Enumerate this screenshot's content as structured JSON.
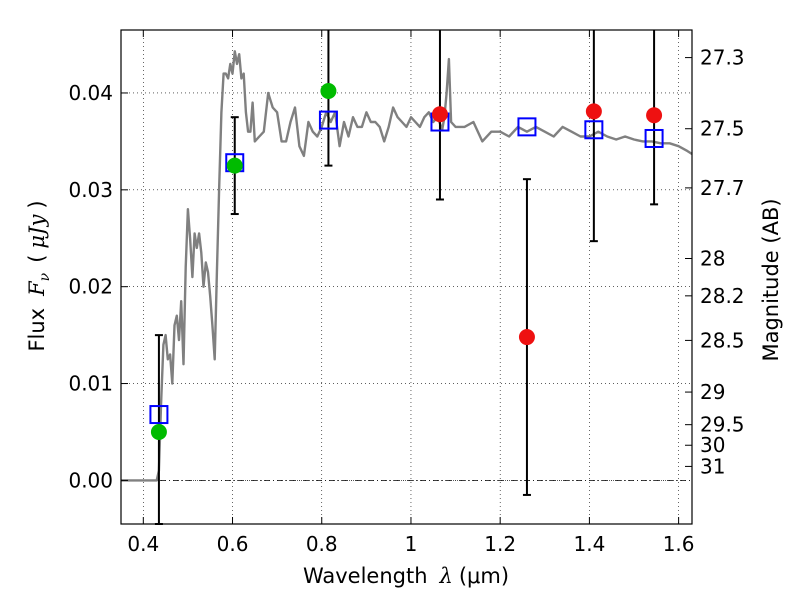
{
  "chart_data": {
    "type": "scatter",
    "title": "",
    "xlabel": {
      "prefix": "Wavelength",
      "symbol": "λ",
      "unit": "(μm)"
    },
    "ylabel": {
      "prefix": "Flux",
      "symbol": "F",
      "subscript": "ν",
      "unit": "μJy"
    },
    "y2label": "Magnitude (AB)",
    "xlim": [
      0.35,
      1.63
    ],
    "ylim": [
      -0.0045,
      0.0465
    ],
    "grid": true,
    "x_ticks": [
      0.4,
      0.6,
      0.8,
      1.0,
      1.2,
      1.4,
      1.6
    ],
    "x_tick_labels": [
      "0.4",
      "0.6",
      "0.8",
      "1",
      "1.2",
      "1.4",
      "1.6"
    ],
    "y_ticks": [
      0.0,
      0.01,
      0.02,
      0.03,
      0.04
    ],
    "y_tick_labels": [
      "0.00",
      "0.01",
      "0.02",
      "0.03",
      "0.04"
    ],
    "mag_ticks": [
      27.3,
      27.5,
      27.7,
      28,
      28.2,
      28.5,
      29,
      29.5,
      30,
      31
    ],
    "mag_tick_labels": [
      "27.3",
      "27.5",
      "27.7",
      "28",
      "28.2",
      "28.5",
      "29",
      "29.5",
      "30",
      "31"
    ],
    "mag_zero_point": 23.9,
    "colors": {
      "spectrum": "#808080",
      "model_square": "#0000ff",
      "detection_green": "#00bb00",
      "measurement_red": "#ee1111",
      "errorbar": "#000000",
      "zero_line": "#000000"
    },
    "spectrum": {
      "x": [
        0.35,
        0.43,
        0.435,
        0.44,
        0.445,
        0.45,
        0.455,
        0.46,
        0.465,
        0.47,
        0.475,
        0.48,
        0.485,
        0.49,
        0.495,
        0.5,
        0.505,
        0.51,
        0.515,
        0.52,
        0.525,
        0.53,
        0.535,
        0.54,
        0.545,
        0.55,
        0.555,
        0.56,
        0.565,
        0.57,
        0.575,
        0.58,
        0.585,
        0.59,
        0.595,
        0.6,
        0.605,
        0.61,
        0.615,
        0.62,
        0.625,
        0.63,
        0.635,
        0.64,
        0.645,
        0.65,
        0.66,
        0.67,
        0.68,
        0.69,
        0.7,
        0.71,
        0.72,
        0.73,
        0.74,
        0.75,
        0.76,
        0.77,
        0.78,
        0.79,
        0.8,
        0.81,
        0.82,
        0.83,
        0.84,
        0.85,
        0.86,
        0.87,
        0.88,
        0.89,
        0.9,
        0.91,
        0.92,
        0.93,
        0.94,
        0.95,
        0.96,
        0.97,
        0.98,
        0.99,
        1.0,
        1.01,
        1.02,
        1.03,
        1.04,
        1.05,
        1.06,
        1.07,
        1.075,
        1.08,
        1.085,
        1.09,
        1.1,
        1.12,
        1.14,
        1.16,
        1.18,
        1.2,
        1.22,
        1.24,
        1.26,
        1.28,
        1.3,
        1.32,
        1.34,
        1.36,
        1.38,
        1.4,
        1.42,
        1.44,
        1.46,
        1.48,
        1.5,
        1.52,
        1.54,
        1.56,
        1.58,
        1.6,
        1.62,
        1.63
      ],
      "y": [
        0.0,
        0.0,
        0.001,
        0.008,
        0.014,
        0.015,
        0.0125,
        0.013,
        0.01,
        0.016,
        0.017,
        0.0145,
        0.0185,
        0.012,
        0.022,
        0.028,
        0.025,
        0.021,
        0.0255,
        0.024,
        0.0255,
        0.0235,
        0.02,
        0.0225,
        0.0215,
        0.019,
        0.016,
        0.0125,
        0.0215,
        0.03,
        0.038,
        0.042,
        0.042,
        0.0415,
        0.043,
        0.042,
        0.0443,
        0.043,
        0.044,
        0.0415,
        0.042,
        0.038,
        0.036,
        0.036,
        0.039,
        0.035,
        0.0355,
        0.036,
        0.04,
        0.0385,
        0.038,
        0.035,
        0.035,
        0.037,
        0.0385,
        0.0345,
        0.0335,
        0.037,
        0.036,
        0.0355,
        0.0365,
        0.038,
        0.037,
        0.038,
        0.0345,
        0.037,
        0.0355,
        0.0375,
        0.0365,
        0.0365,
        0.038,
        0.037,
        0.037,
        0.0365,
        0.035,
        0.0365,
        0.0385,
        0.0375,
        0.037,
        0.0365,
        0.0375,
        0.037,
        0.0365,
        0.0375,
        0.038,
        0.037,
        0.0375,
        0.0362,
        0.0375,
        0.04,
        0.0435,
        0.037,
        0.0365,
        0.0365,
        0.037,
        0.035,
        0.036,
        0.036,
        0.0355,
        0.0365,
        0.036,
        0.0365,
        0.036,
        0.0355,
        0.0365,
        0.036,
        0.0355,
        0.0355,
        0.036,
        0.0355,
        0.0352,
        0.0355,
        0.0352,
        0.035,
        0.035,
        0.0348,
        0.0348,
        0.0345,
        0.034,
        0.0337
      ]
    },
    "series": [
      {
        "key": "model",
        "x": [
          0.435,
          0.605,
          0.815,
          1.065,
          1.26,
          1.41,
          1.545
        ],
        "y": [
          0.0068,
          0.0328,
          0.0372,
          0.037,
          0.0365,
          0.0362,
          0.0353
        ]
      },
      {
        "key": "detections",
        "x": [
          0.435,
          0.605,
          0.815
        ],
        "y": [
          0.005,
          0.0325,
          0.0402
        ],
        "yerr_lo": [
          0.0095,
          0.005,
          0.0077
        ],
        "yerr_hi": [
          0.01,
          0.005,
          0.0098
        ]
      },
      {
        "key": "measurements",
        "x": [
          1.065,
          1.26,
          1.41,
          1.545
        ],
        "y": [
          0.0378,
          0.0148,
          0.0381,
          0.0377
        ],
        "yerr_lo": [
          0.0088,
          0.0163,
          0.0134,
          0.0092
        ],
        "yerr_hi": [
          0.0129,
          0.0163,
          0.0129,
          0.0129
        ]
      }
    ]
  }
}
